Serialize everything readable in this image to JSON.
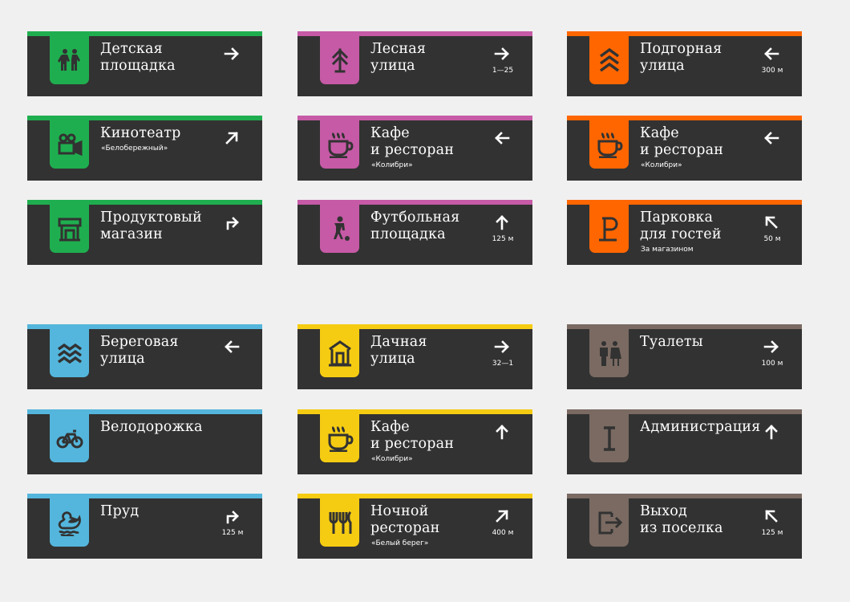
{
  "colors": {
    "green": "#1fae4f",
    "magenta": "#c65aa6",
    "orange": "#ff6600",
    "blue": "#54b6dc",
    "yellow": "#f5cc12",
    "brown": "#7a6a62",
    "panel": "#323232",
    "background": "#f0f0f0"
  },
  "signs": [
    {
      "title": "Детская\nплощадка",
      "subtitle": "",
      "distance": "",
      "icon": "children-icon",
      "arrow": "right",
      "color": "green"
    },
    {
      "title": "Лесная\nулица",
      "subtitle": "",
      "distance": "1—25",
      "icon": "tree-icon",
      "arrow": "right",
      "color": "magenta"
    },
    {
      "title": "Подгорная\nулица",
      "subtitle": "",
      "distance": "300 м",
      "icon": "mountain-chevrons-icon",
      "arrow": "left",
      "color": "orange"
    },
    {
      "title": "Кинотеатр",
      "subtitle": "«Белобережный»",
      "distance": "",
      "icon": "movie-camera-icon",
      "arrow": "up-right",
      "color": "green"
    },
    {
      "title": "Кафе\nи ресторан",
      "subtitle": "«Колибри»",
      "distance": "",
      "icon": "coffee-cup-icon",
      "arrow": "left",
      "color": "magenta"
    },
    {
      "title": "Кафе\nи ресторан",
      "subtitle": "«Колибри»",
      "distance": "",
      "icon": "coffee-cup-icon",
      "arrow": "left",
      "color": "orange"
    },
    {
      "title": "Продуктовый\nмагазин",
      "subtitle": "",
      "distance": "",
      "icon": "shop-counter-icon",
      "arrow": "turn-right",
      "color": "green"
    },
    {
      "title": "Футбольная\nплощадка",
      "subtitle": "",
      "distance": "125 м",
      "icon": "football-player-icon",
      "arrow": "up",
      "color": "magenta"
    },
    {
      "title": "Парковка\nдля гостей",
      "subtitle": "За магазином",
      "distance": "50 м",
      "icon": "parking-icon",
      "arrow": "up-left",
      "color": "orange"
    },
    {
      "title": "Береговая\nулица",
      "subtitle": "",
      "distance": "",
      "icon": "waves-icon",
      "arrow": "left",
      "color": "blue"
    },
    {
      "title": "Дачная\nулица",
      "subtitle": "",
      "distance": "32—1",
      "icon": "house-icon",
      "arrow": "right",
      "color": "yellow"
    },
    {
      "title": "Туалеты",
      "subtitle": "",
      "distance": "100 м",
      "icon": "toilets-icon",
      "arrow": "right",
      "color": "brown"
    },
    {
      "title": "Велодорожка",
      "subtitle": "",
      "distance": "",
      "icon": "bicycle-icon",
      "arrow": "",
      "color": "blue"
    },
    {
      "title": "Кафе\nи ресторан",
      "subtitle": "«Колибри»",
      "distance": "",
      "icon": "coffee-cup-icon",
      "arrow": "up",
      "color": "yellow"
    },
    {
      "title": "Администрация",
      "subtitle": "",
      "distance": "",
      "icon": "info-i-icon",
      "arrow": "up",
      "color": "brown"
    },
    {
      "title": "Пруд",
      "subtitle": "",
      "distance": "125 м",
      "icon": "duck-icon",
      "arrow": "turn-right",
      "color": "blue"
    },
    {
      "title": "Ночной\nресторан",
      "subtitle": "«Белый берег»",
      "distance": "400 м",
      "icon": "fork-knife-icon",
      "arrow": "up-right",
      "color": "yellow"
    },
    {
      "title": "Выход\nиз поселка",
      "subtitle": "",
      "distance": "125 м",
      "icon": "exit-icon",
      "arrow": "up-left",
      "color": "brown"
    }
  ]
}
